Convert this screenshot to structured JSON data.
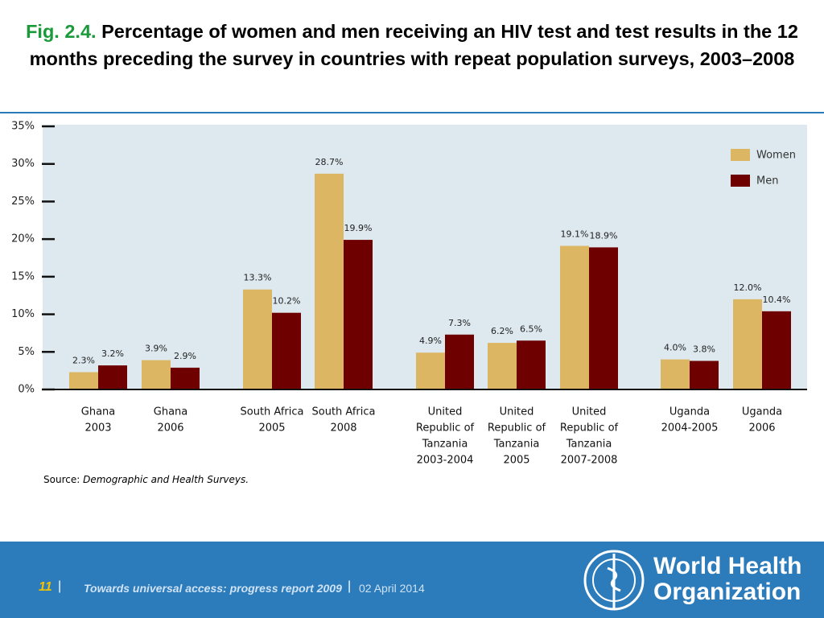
{
  "chart_data": {
    "type": "bar",
    "figure_label": "Fig. 2.4.",
    "title": "Percentage of women and men receiving an HIV test and test results in the 12 months preceding the survey in countries with repeat population surveys, 2003–2008",
    "categories": [
      [
        "Ghana",
        "2003"
      ],
      [
        "Ghana",
        "2006"
      ],
      [
        "South Africa",
        "2005"
      ],
      [
        "South Africa",
        "2008"
      ],
      [
        "United",
        "Republic of",
        "Tanzania",
        "2003-2004"
      ],
      [
        "United",
        "Republic of",
        "Tanzania",
        "2005"
      ],
      [
        "United",
        "Republic of",
        "Tanzania",
        "2007-2008"
      ],
      [
        "Uganda",
        "2004-2005"
      ],
      [
        "Uganda",
        "2006"
      ]
    ],
    "series": [
      {
        "name": "Women",
        "color": "#dcb662",
        "values": [
          2.3,
          3.9,
          13.3,
          28.7,
          4.9,
          6.2,
          19.1,
          4.0,
          12.0
        ],
        "value_labels": [
          "2.3%",
          "3.9%",
          "13.3%",
          "28.7%",
          "4.9%",
          "6.2%",
          "19.1%",
          "4.0%",
          "12.0%"
        ]
      },
      {
        "name": "Men",
        "color": "#6e0000",
        "values": [
          3.2,
          2.9,
          10.2,
          19.9,
          7.3,
          6.5,
          18.9,
          3.8,
          10.4
        ],
        "value_labels": [
          "3.2%",
          "2.9%",
          "10.2%",
          "19.9%",
          "7.3%",
          "6.5%",
          "18.9%",
          "3.8%",
          "10.4%"
        ]
      }
    ],
    "ylim": [
      0,
      35
    ],
    "yticks": [
      {
        "value": 0,
        "label": "0%"
      },
      {
        "value": 5,
        "label": "5%"
      },
      {
        "value": 10,
        "label": "10%"
      },
      {
        "value": 15,
        "label": "15%"
      },
      {
        "value": 20,
        "label": "20%"
      },
      {
        "value": 25,
        "label": "25%"
      },
      {
        "value": 30,
        "label": "30%"
      },
      {
        "value": 35,
        "label": "35%"
      }
    ],
    "legend": "upper right",
    "source_label": "Source:",
    "source": "Demographic and Health Surveys."
  },
  "footer": {
    "page": "11",
    "separator": "|",
    "report": "Towards universal access: progress report 2009",
    "date": "02 April 2014"
  },
  "logo": {
    "lines": [
      "World Health",
      "Organization"
    ]
  }
}
